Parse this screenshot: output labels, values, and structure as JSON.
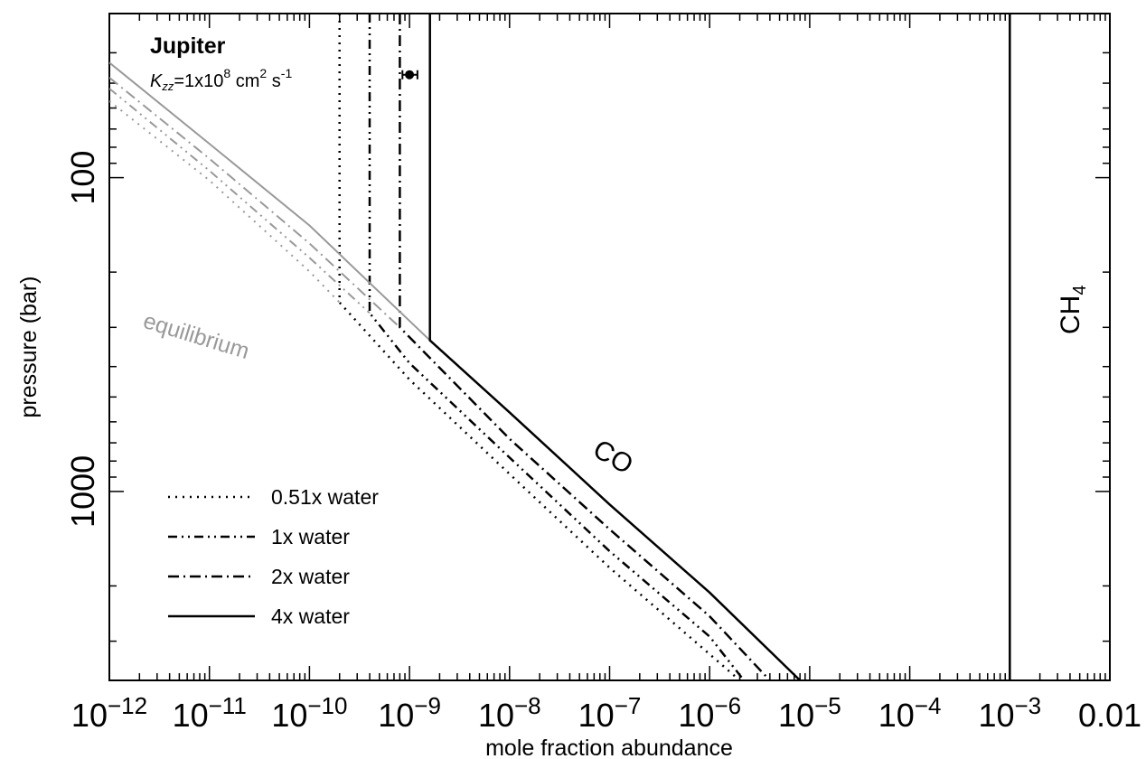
{
  "chart_data": {
    "type": "line",
    "title": "Jupiter",
    "subtitle": {
      "k": "K",
      "k_sub": "zz",
      "value": "=1x10",
      "exp": "8",
      "unit": " cm",
      "unit_exp": "2",
      "unit2": " s",
      "unit2_exp": "-1"
    },
    "xlabel": "mole fraction abundance",
    "ylabel": "pressure (bar)",
    "x_scale": "log",
    "y_scale": "log",
    "y_inverted": true,
    "xlim": [
      1e-12,
      0.01
    ],
    "ylim": [
      4000,
      30
    ],
    "x_ticks": [
      {
        "base": "10",
        "exp": "−12",
        "value": 1e-12
      },
      {
        "base": "10",
        "exp": "−11",
        "value": 1e-11
      },
      {
        "base": "10",
        "exp": "−10",
        "value": 1e-10
      },
      {
        "base": "10",
        "exp": "−9",
        "value": 1e-09
      },
      {
        "base": "10",
        "exp": "−8",
        "value": 1e-08
      },
      {
        "base": "10",
        "exp": "−7",
        "value": 1e-07
      },
      {
        "base": "10",
        "exp": "−6",
        "value": 1e-06
      },
      {
        "base": "10",
        "exp": "−5",
        "value": 1e-05
      },
      {
        "base": "10",
        "exp": "−4",
        "value": 0.0001
      },
      {
        "base": "10",
        "exp": "−3",
        "value": 0.001
      },
      {
        "base": "0.01",
        "exp": "",
        "value": 0.01
      }
    ],
    "y_ticks": [
      {
        "label": "100",
        "value": 100
      },
      {
        "label": "1000",
        "value": 1000
      }
    ],
    "annotations": {
      "co": "CO",
      "ch4_main": "CH",
      "ch4_sub": "4",
      "equilibrium": "equilibrium"
    },
    "legend_position": "lower-left",
    "series": [
      {
        "name": "0.51x water",
        "dash": "dotted",
        "quench_x": 2e-10,
        "equilibrium": [
          [
            1e-12,
            57
          ],
          [
            1e-11,
            102
          ],
          [
            1e-10,
            199
          ],
          [
            2e-10,
            250
          ],
          [
            1e-09,
            440
          ],
          [
            1e-08,
            880
          ],
          [
            1e-07,
            1750
          ],
          [
            1e-06,
            3300
          ],
          [
            2e-06,
            4000
          ]
        ]
      },
      {
        "name": "1x water",
        "dash": "dash-dot-dot",
        "quench_x": 4e-10,
        "equilibrium": [
          [
            1e-12,
            52
          ],
          [
            1e-11,
            95
          ],
          [
            1e-10,
            180
          ],
          [
            4e-10,
            270
          ],
          [
            1e-09,
            390
          ],
          [
            1e-08,
            780
          ],
          [
            1e-07,
            1550
          ],
          [
            1e-06,
            2900
          ],
          [
            2.2e-06,
            4000
          ]
        ]
      },
      {
        "name": "2x water",
        "dash": "dash-dot",
        "quench_x": 8e-10,
        "equilibrium": [
          [
            1e-12,
            48
          ],
          [
            1e-11,
            87
          ],
          [
            1e-10,
            162
          ],
          [
            8e-10,
            300
          ],
          [
            1e-08,
            680
          ],
          [
            1e-07,
            1320
          ],
          [
            1e-06,
            2500
          ],
          [
            4e-06,
            4000
          ]
        ]
      },
      {
        "name": "4x water",
        "dash": "solid",
        "quench_x": 1.6e-09,
        "equilibrium": [
          [
            1e-12,
            43
          ],
          [
            1e-11,
            78
          ],
          [
            1e-10,
            142
          ],
          [
            1.6e-09,
            330
          ],
          [
            1e-08,
            560
          ],
          [
            1e-07,
            1100
          ],
          [
            1e-06,
            2100
          ],
          [
            8e-06,
            4000
          ]
        ]
      }
    ],
    "ch4_x": 0.001,
    "observation": {
      "x": 1e-09,
      "y": 47,
      "xerr": [
        8.5e-10,
        1.2e-09
      ]
    }
  }
}
